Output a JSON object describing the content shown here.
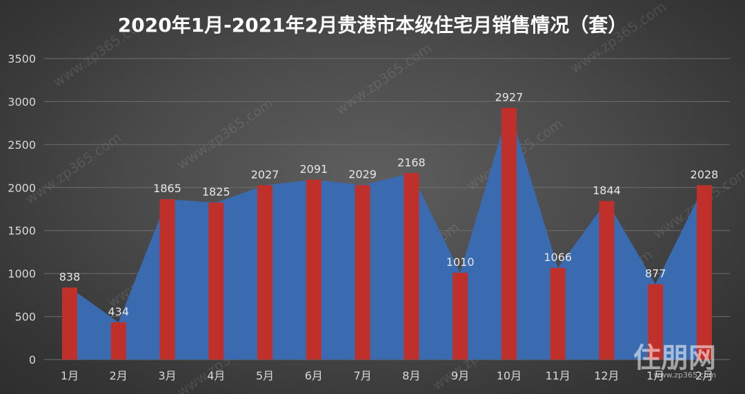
{
  "chart_data": {
    "type": "bar",
    "title": "2020年1月-2021年2月贵港市本级住宅月销售情况（套）",
    "categories": [
      "1月",
      "2月",
      "3月",
      "4月",
      "5月",
      "6月",
      "7月",
      "8月",
      "9月",
      "10月",
      "11月",
      "12月",
      "1月",
      "2月"
    ],
    "values": [
      838,
      434,
      1865,
      1825,
      2027,
      2091,
      2029,
      2168,
      1010,
      2927,
      1066,
      1844,
      877,
      2028
    ],
    "ylim": [
      0,
      3500
    ],
    "yticks": [
      0,
      500,
      1000,
      1500,
      2000,
      2500,
      3000,
      3500
    ],
    "grid": true,
    "legend": "none",
    "overlay": "area"
  },
  "colors": {
    "bar": "#c0302b",
    "area": "#3a6bb0",
    "grid": "#6e6e6e",
    "text": "#d9d9d9"
  },
  "watermark": "www.zp365.com",
  "logo": {
    "name": "住朋网",
    "url": "www.zp365.com"
  }
}
